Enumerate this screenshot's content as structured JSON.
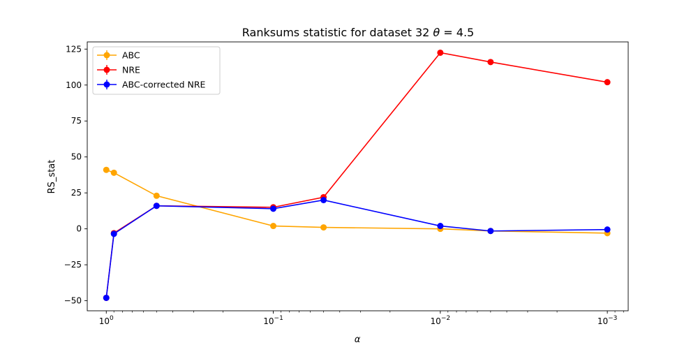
{
  "chart_data": {
    "type": "line",
    "title_prefix": "Ranksums statistic for dataset 32 ",
    "title_theta": "θ",
    "title_suffix": " =  4.5",
    "xlabel": "α",
    "ylabel": "RS_stat",
    "xscale": "log",
    "xaxis_reversed": true,
    "xlim": [
      1.3,
      0.00075
    ],
    "ylim": [
      -57,
      130
    ],
    "grid": false,
    "legend_position": "top-left",
    "x_major_ticks": [
      {
        "value": 1,
        "base": "10",
        "exp": "0"
      },
      {
        "value": 0.1,
        "base": "10",
        "exp": "−1"
      },
      {
        "value": 0.01,
        "base": "10",
        "exp": "−2"
      },
      {
        "value": 0.001,
        "base": "10",
        "exp": "−3"
      }
    ],
    "y_ticks": [
      {
        "value": 125,
        "label": "125"
      },
      {
        "value": 100,
        "label": "100"
      },
      {
        "value": 75,
        "label": "75"
      },
      {
        "value": 50,
        "label": "50"
      },
      {
        "value": 25,
        "label": "25"
      },
      {
        "value": 0,
        "label": "0"
      },
      {
        "value": -25,
        "label": "−25"
      },
      {
        "value": -50,
        "label": "−50"
      }
    ],
    "series": [
      {
        "name": "ABC",
        "color": "#ffa500",
        "x": [
          1,
          0.9,
          0.5,
          0.1,
          0.05,
          0.01,
          0.005,
          0.001
        ],
        "y": [
          41,
          39,
          23,
          2,
          1,
          0,
          -1.5,
          -3
        ]
      },
      {
        "name": "NRE",
        "color": "#ff0000",
        "x": [
          1,
          0.9,
          0.5,
          0.1,
          0.05,
          0.01,
          0.005,
          0.001
        ],
        "y": [
          -48,
          -3,
          16,
          15,
          22,
          122.5,
          116,
          102
        ]
      },
      {
        "name": "ABC-corrected NRE",
        "color": "#0000ff",
        "x": [
          1,
          0.9,
          0.5,
          0.1,
          0.05,
          0.01,
          0.005,
          0.001
        ],
        "y": [
          -48,
          -3.5,
          16,
          14,
          20,
          2,
          -1.5,
          -0.5
        ]
      }
    ]
  }
}
